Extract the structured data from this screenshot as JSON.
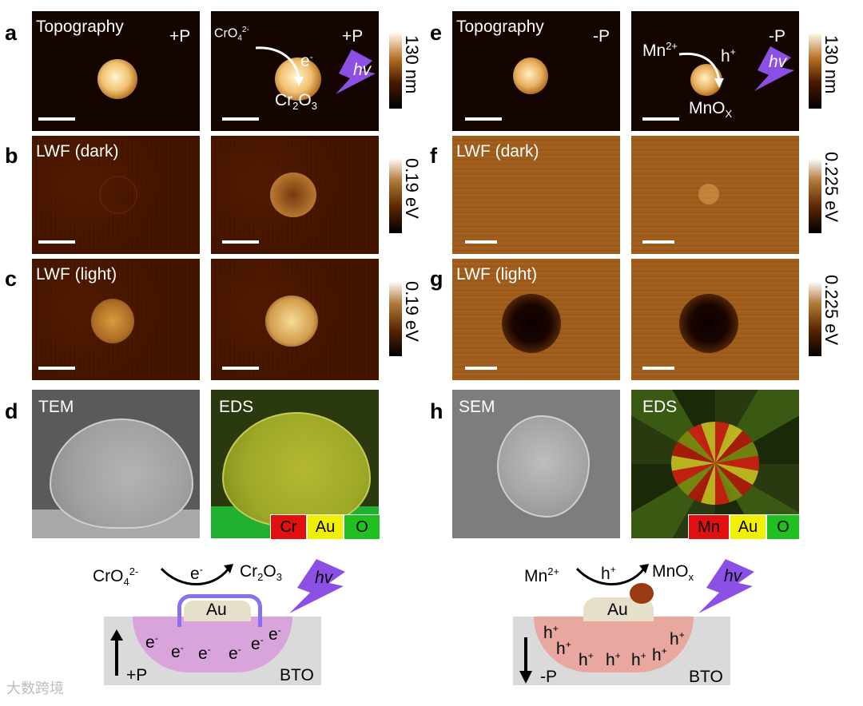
{
  "panels": {
    "a": "a",
    "b": "b",
    "c": "c",
    "d": "d",
    "e": "e",
    "f": "f",
    "g": "g",
    "h": "h"
  },
  "left": {
    "topography": "Topography",
    "pol_pos": "+P",
    "cro4": "CrO",
    "cro4_sub": "4",
    "cro4_sup": "2-",
    "e_minus": "e",
    "e_sup": "-",
    "hv": "hv",
    "cr2o3_cr": "Cr",
    "cr2o3_2": "2",
    "cr2o3_o": "O",
    "cr2o3_3": "3",
    "cbar_afm": "130 nm",
    "lwf_dark": "LWF (dark)",
    "lwf_light": "LWF (light)",
    "cbar_lwf": "0.19 eV",
    "tem": "TEM",
    "eds": "EDS",
    "legend": [
      {
        "text": "Cr",
        "color": "#e01010"
      },
      {
        "text": "Au",
        "color": "#f0f000"
      },
      {
        "text": "O",
        "color": "#20c020"
      }
    ]
  },
  "right": {
    "topography": "Topography",
    "pol_neg": "-P",
    "mn2": "Mn",
    "mn2_sup": "2+",
    "h_plus": "h",
    "h_sup": "+",
    "hv": "hv",
    "mnox": "MnO",
    "mnox_sub": "X",
    "cbar_afm": "130 nm",
    "lwf_dark": "LWF (dark)",
    "lwf_light": "LWF (light)",
    "cbar_lwf": "0.225 eV",
    "sem": "SEM",
    "eds": "EDS",
    "legend": [
      {
        "text": "Mn",
        "color": "#e01010"
      },
      {
        "text": "Au",
        "color": "#f0f000"
      },
      {
        "text": "O",
        "color": "#20c020"
      }
    ]
  },
  "schematic_left": {
    "cro4": "CrO",
    "cro4_sub": "4",
    "cro4_sup": "2-",
    "e": "e",
    "e_sup": "-",
    "cr2o3_a": "Cr",
    "cr2o3_b": "2",
    "cr2o3_c": "O",
    "cr2o3_d": "3",
    "hv": "hv",
    "au": "Au",
    "electron": "e",
    "electron_sup": "-",
    "pol": "+P",
    "bto": "BTO"
  },
  "schematic_right": {
    "mn2": "Mn",
    "mn2_sup": "2+",
    "h": "h",
    "h_sup": "+",
    "mnox": "MnO",
    "mnox_sub": "x",
    "hv": "hv",
    "au": "Au",
    "hole": "h",
    "hole_sup": "+",
    "pol": "-P",
    "bto": "BTO"
  },
  "watermark": "大数跨境"
}
